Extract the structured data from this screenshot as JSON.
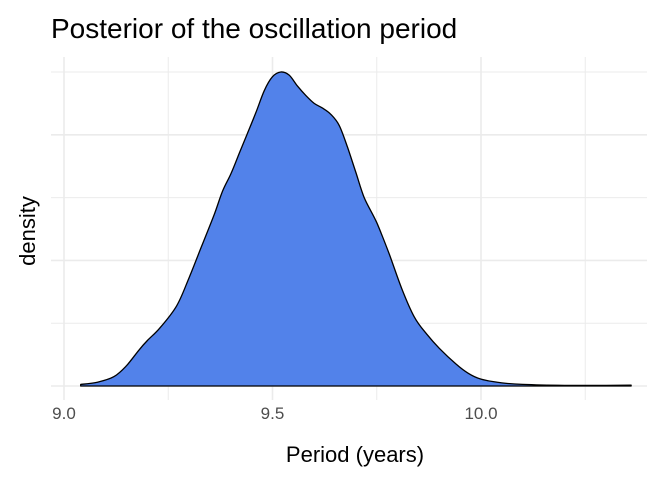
{
  "chart_data": {
    "type": "area",
    "title": "Posterior of the oscillation period",
    "xlabel": "Period (years)",
    "ylabel": "density",
    "xlim": [
      9.0,
      10.37
    ],
    "x_ticks": [
      {
        "value": 9.0,
        "label": "9.0"
      },
      {
        "value": 9.5,
        "label": "9.5"
      },
      {
        "value": 10.0,
        "label": "10.0"
      }
    ],
    "y_tick_labels_shown": false,
    "grid": true,
    "legend": "none",
    "fill_color": "#5282EA",
    "line_color": "#000000",
    "series": [
      {
        "x": [
          9.04,
          9.08,
          9.12,
          9.15,
          9.18,
          9.2,
          9.23,
          9.27,
          9.3,
          9.33,
          9.36,
          9.38,
          9.4,
          9.42,
          9.44,
          9.46,
          9.48,
          9.5,
          9.52,
          9.54,
          9.56,
          9.58,
          9.6,
          9.62,
          9.64,
          9.66,
          9.68,
          9.7,
          9.72,
          9.75,
          9.78,
          9.81,
          9.84,
          9.87,
          9.9,
          9.94,
          9.97,
          10.0,
          10.05,
          10.1,
          10.2,
          10.3,
          10.36
        ],
        "y": [
          0.005,
          0.012,
          0.03,
          0.065,
          0.115,
          0.145,
          0.185,
          0.255,
          0.345,
          0.445,
          0.545,
          0.62,
          0.675,
          0.74,
          0.805,
          0.87,
          0.94,
          0.985,
          1.0,
          0.99,
          0.955,
          0.925,
          0.9,
          0.885,
          0.865,
          0.83,
          0.76,
          0.68,
          0.6,
          0.52,
          0.42,
          0.31,
          0.22,
          0.165,
          0.12,
          0.07,
          0.04,
          0.022,
          0.01,
          0.005,
          0.002,
          0.002,
          0.003
        ]
      }
    ]
  }
}
